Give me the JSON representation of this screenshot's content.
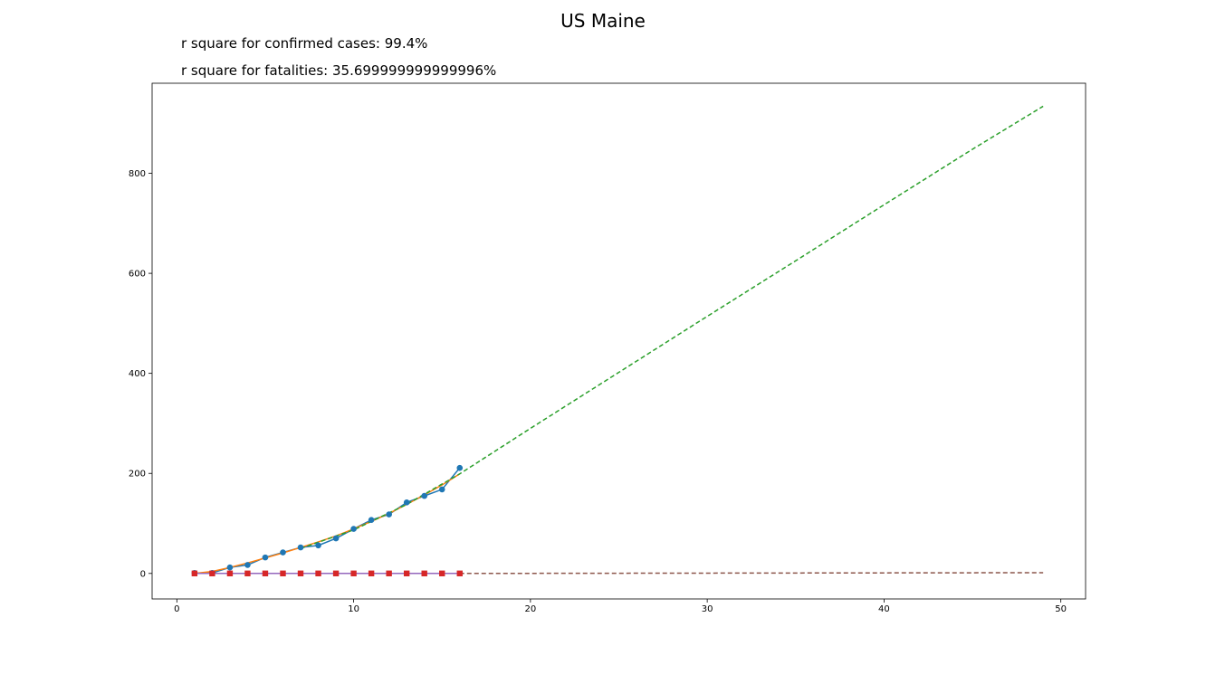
{
  "chart_data": {
    "type": "line",
    "title": "US Maine",
    "annotations": [
      "r square for confirmed cases: 99.4%",
      "r square for fatalities: 35.699999999999996%"
    ],
    "xlabel": "",
    "ylabel": "",
    "xlim": [
      -1.4,
      51.4
    ],
    "ylim": [
      -51,
      980
    ],
    "xticks": [
      0,
      10,
      20,
      30,
      40,
      50
    ],
    "yticks": [
      0,
      200,
      400,
      600,
      800
    ],
    "grid": false,
    "series": [
      {
        "role": "confirmed-observed",
        "color": "#1f77b4",
        "marker": "circle",
        "line": "solid",
        "x": [
          1,
          2,
          3,
          4,
          5,
          6,
          7,
          8,
          9,
          10,
          11,
          12,
          13,
          14,
          15,
          16
        ],
        "y": [
          1,
          1,
          12,
          17,
          32,
          42,
          52,
          56,
          70,
          89,
          107,
          118,
          142,
          155,
          168,
          211
        ]
      },
      {
        "role": "confirmed-fit",
        "color": "#ff7f0e",
        "marker": "none",
        "line": "solid",
        "x": [
          1,
          2,
          3,
          4,
          5,
          6,
          7,
          8,
          9,
          10,
          11,
          12,
          13,
          14,
          15,
          16
        ],
        "y": [
          0,
          4,
          12,
          21,
          31,
          41,
          52,
          63,
          75,
          89,
          104,
          120,
          138,
          157,
          177,
          199
        ]
      },
      {
        "role": "confirmed-forecast",
        "color": "#2ca02c",
        "marker": "none",
        "line": "dashed",
        "x": [
          7,
          10,
          13,
          16,
          20,
          25,
          30,
          35,
          40,
          45,
          49
        ],
        "y": [
          50,
          87,
          138,
          199,
          290,
          402,
          514,
          625,
          737,
          848,
          934
        ]
      },
      {
        "role": "fatalities-observed",
        "color": "#d62728",
        "marker": "square",
        "line": "solid",
        "x": [
          1,
          2,
          3,
          4,
          5,
          6,
          7,
          8,
          9,
          10,
          11,
          12,
          13,
          14,
          15,
          16
        ],
        "y": [
          0,
          0,
          0,
          0,
          0,
          0,
          0,
          0,
          0,
          0,
          0,
          0,
          0,
          0,
          0,
          0
        ]
      },
      {
        "role": "fatalities-fit",
        "color": "#9467bd",
        "marker": "none",
        "line": "solid",
        "x": [
          1,
          16
        ],
        "y": [
          0,
          0
        ]
      },
      {
        "role": "fatalities-forecast",
        "color": "#8c564b",
        "marker": "none",
        "line": "dashed",
        "x": [
          16,
          49
        ],
        "y": [
          0,
          1.5
        ]
      }
    ]
  }
}
